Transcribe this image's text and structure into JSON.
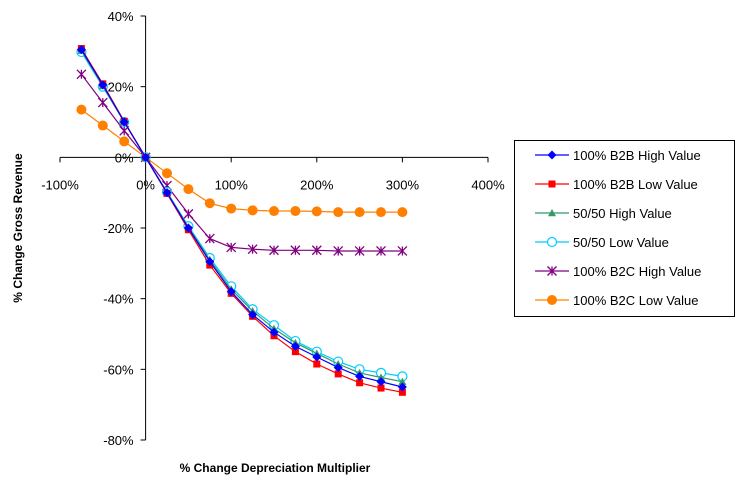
{
  "chart_data": {
    "type": "line",
    "title": "",
    "xlabel": "% Change Depreciation Multiplier",
    "ylabel": "% Change Gross Revenue",
    "xlim": [
      -100,
      400
    ],
    "ylim": [
      -80,
      40
    ],
    "x_ticks": [
      -100,
      0,
      100,
      200,
      300,
      400
    ],
    "x_tick_labels": [
      "-100%",
      "0%",
      "100%",
      "200%",
      "300%",
      "400%"
    ],
    "y_ticks": [
      -80,
      -60,
      -40,
      -20,
      0,
      20,
      40
    ],
    "y_tick_labels": [
      "-80%",
      "-60%",
      "-40%",
      "-20%",
      "0%",
      "20%",
      "40%"
    ],
    "grid": false,
    "legend_position": "right",
    "x": [
      -75,
      -50,
      -25,
      0,
      25,
      50,
      75,
      100,
      125,
      150,
      175,
      200,
      225,
      250,
      275,
      300
    ],
    "series": [
      {
        "name": "100% B2B High Value",
        "color": "#0000ff",
        "marker": "diamond",
        "values": [
          30.5,
          20.5,
          10,
          0,
          -10,
          -20,
          -29.5,
          -38,
          -44.5,
          -49.5,
          -53.5,
          -56.5,
          -59.5,
          -62,
          -63.5,
          -65
        ]
      },
      {
        "name": "100% B2B Low Value",
        "color": "#ff0000",
        "marker": "square",
        "values": [
          30.8,
          20.8,
          10.2,
          0,
          -10.2,
          -20.5,
          -30.5,
          -38.5,
          -45,
          -50.5,
          -55,
          -58.5,
          -61.3,
          -63.8,
          -65.3,
          -66.5
        ]
      },
      {
        "name": "50/50 High Value",
        "color": "#339966",
        "marker": "triangle",
        "values": [
          30.2,
          20.2,
          10,
          0,
          -10,
          -19.8,
          -29,
          -37.3,
          -43.5,
          -48.5,
          -52.5,
          -55.5,
          -58.5,
          -61,
          -62.3,
          -63.5
        ]
      },
      {
        "name": "50/50 Low Value",
        "color": "#00ccff",
        "marker": "circle-open",
        "values": [
          29.8,
          20,
          10,
          0,
          -9.8,
          -19.5,
          -28.5,
          -36.5,
          -43,
          -47.5,
          -52,
          -55,
          -57.8,
          -60,
          -61,
          -62
        ]
      },
      {
        "name": "100% B2C High Value",
        "color": "#800080",
        "marker": "asterisk",
        "values": [
          23.5,
          15.5,
          7.5,
          0,
          -8,
          -16,
          -23,
          -25.5,
          -26,
          -26.3,
          -26.3,
          -26.3,
          -26.5,
          -26.5,
          -26.5,
          -26.5
        ]
      },
      {
        "name": "100% B2C Low Value",
        "color": "#ff8000",
        "marker": "circle",
        "values": [
          13.5,
          9,
          4.5,
          0,
          -4.5,
          -9,
          -13,
          -14.5,
          -15,
          -15.2,
          -15.2,
          -15.3,
          -15.5,
          -15.5,
          -15.5,
          -15.5
        ]
      }
    ]
  }
}
